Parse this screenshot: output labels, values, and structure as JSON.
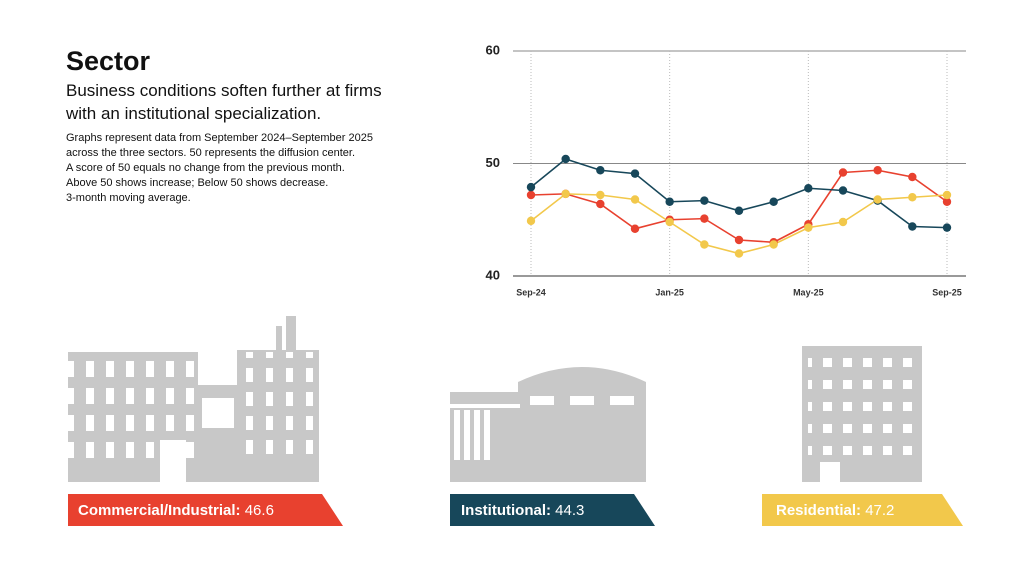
{
  "header": {
    "title": "Sector",
    "subtitle": "Business conditions soften further at firms with an institutional specialization.",
    "notes": [
      "Graphs represent data from September 2024–September 2025",
      "across the three sectors. 50 represents the diffusion center.",
      "A score of 50 equals no change from the previous month.",
      "Above 50 shows increase; Below 50 shows decrease.",
      "3-month moving average."
    ]
  },
  "chart_data": {
    "type": "line",
    "categories": [
      "Sep-24",
      null,
      null,
      null,
      "Jan-25",
      null,
      null,
      null,
      "May-25",
      null,
      null,
      null,
      "Sep-25"
    ],
    "series": [
      {
        "name": "Commercial/Industrial:",
        "color": "#e8412f",
        "values": [
          47.2,
          47.3,
          46.4,
          44.2,
          45.0,
          45.1,
          43.2,
          43.0,
          44.6,
          49.2,
          49.4,
          48.8,
          46.6
        ]
      },
      {
        "name": "Institutional:",
        "color": "#17475a",
        "values": [
          47.9,
          50.4,
          49.4,
          49.1,
          46.6,
          46.7,
          45.8,
          46.6,
          47.8,
          47.6,
          46.7,
          44.4,
          44.3
        ]
      },
      {
        "name": "Residential:",
        "color": "#f2c84b",
        "values": [
          44.9,
          47.3,
          47.2,
          46.8,
          44.8,
          42.8,
          42.0,
          42.8,
          44.3,
          44.8,
          46.8,
          47.0,
          47.2
        ]
      }
    ],
    "ylim": [
      40,
      60
    ],
    "yticks": [
      40,
      50,
      60
    ],
    "grid": true
  }
}
